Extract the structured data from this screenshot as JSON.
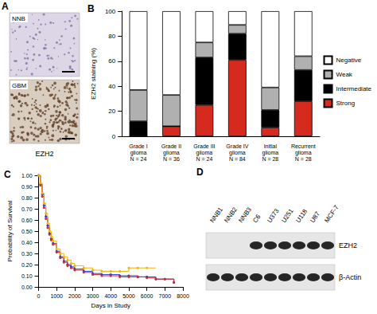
{
  "panels": {
    "A": {
      "letter": "A",
      "images": [
        {
          "label": "NNB"
        },
        {
          "label": "GBM"
        }
      ],
      "stain": "EZH2"
    },
    "D": {
      "letter": "D",
      "lanes": [
        "NNB1",
        "NNB2",
        "NNB3",
        "C6",
        "U373",
        "U251",
        "U118",
        "U87",
        "MCF-7"
      ],
      "rows": [
        {
          "label": "EZH2",
          "bands": [
            false,
            false,
            false,
            true,
            true,
            true,
            true,
            true,
            true
          ]
        },
        {
          "label": "β-Actin",
          "bands": [
            true,
            true,
            true,
            true,
            true,
            true,
            true,
            true,
            true
          ]
        }
      ]
    }
  },
  "chart_data": [
    {
      "type": "bar",
      "title": "B",
      "y_label": "EZH2 staining (%)",
      "stacked": true,
      "legend": "right",
      "categories": [
        "Grade I\nglioma\nN = 24",
        "Grade II\nglioma\nN = 36",
        "Grade III\nglioma\nN = 24",
        "Grade IV\nglioma\nN = 84",
        "Initial\nglioma\nN = 28",
        "Recurrent\nglioma\nN = 28"
      ],
      "series": [
        {
          "name": "Strong",
          "color": "#d62a1e",
          "values": [
            0,
            8,
            25,
            61,
            7,
            28
          ]
        },
        {
          "name": "Intermediate",
          "color": "#000000",
          "values": [
            12,
            0,
            38,
            21,
            14,
            25
          ]
        },
        {
          "name": "Weak",
          "color": "#b0b0b0",
          "values": [
            25,
            25,
            12,
            7,
            18,
            11
          ]
        },
        {
          "name": "Negative",
          "color": "#ffffff",
          "values": [
            63,
            67,
            25,
            11,
            61,
            36
          ]
        }
      ],
      "ylim": [
        0,
        100
      ],
      "yticks": [
        0,
        20,
        40,
        60,
        80,
        100
      ],
      "grid": false
    },
    {
      "type": "line",
      "title": "C",
      "x_label": "Days in Study",
      "y_label": "Probability of Survival",
      "line_style": "step",
      "marker": "circle",
      "x": [
        0,
        100,
        200,
        300,
        400,
        500,
        600,
        700,
        800,
        1000,
        1200,
        1400,
        1600,
        1800,
        2000,
        2500,
        3000,
        3500,
        4000,
        4500,
        5000,
        5500,
        6000,
        6500,
        7000,
        7500
      ],
      "series": [
        {
          "color": "#2a3bd0",
          "values": [
            1.0,
            0.92,
            0.83,
            0.73,
            0.63,
            0.55,
            0.48,
            0.43,
            0.39,
            0.32,
            0.27,
            0.23,
            0.2,
            0.18,
            0.16,
            0.14,
            0.12,
            0.11,
            0.11,
            0.1,
            0.1,
            0.09,
            0.09,
            0.07,
            0.07,
            0.04
          ]
        },
        {
          "color": "#d02a2a",
          "values": [
            1.0,
            0.91,
            0.81,
            0.71,
            0.61,
            0.53,
            0.47,
            0.42,
            0.38,
            0.31,
            0.26,
            0.22,
            0.19,
            0.17,
            0.15,
            0.13,
            0.11,
            0.1,
            0.1,
            0.09,
            0.09,
            0.09,
            0.08,
            0.07,
            0.07,
            0.04
          ]
        },
        {
          "color": "#f5b400",
          "values": [
            1.0,
            0.93,
            0.84,
            0.75,
            0.66,
            0.57,
            0.5,
            0.45,
            0.41,
            0.34,
            0.3,
            0.27,
            0.24,
            0.21,
            0.19,
            0.17,
            0.15,
            0.14,
            0.14,
            0.14,
            0.17,
            0.17,
            0.17,
            null,
            null,
            null
          ]
        }
      ],
      "xlim": [
        0,
        8000
      ],
      "xticks": [
        0,
        1000,
        2000,
        3000,
        4000,
        5000,
        6000,
        7000,
        8000
      ],
      "ylim": [
        0,
        1
      ],
      "yticks": [
        {
          "value": 0,
          "label": "0.00"
        },
        {
          "value": 0.1,
          "label": "0.10"
        },
        {
          "value": 0.2,
          "label": "0.20"
        },
        {
          "value": 0.3,
          "label": "0.30"
        },
        {
          "value": 0.4,
          "label": "0.40"
        },
        {
          "value": 0.5,
          "label": "0.50"
        },
        {
          "value": 0.6,
          "label": "0.60"
        },
        {
          "value": 0.7,
          "label": "0.70"
        },
        {
          "value": 0.8,
          "label": "0.80"
        },
        {
          "value": 0.9,
          "label": "0.90"
        },
        {
          "value": 1,
          "label": "1.00"
        }
      ],
      "grid": false
    }
  ]
}
